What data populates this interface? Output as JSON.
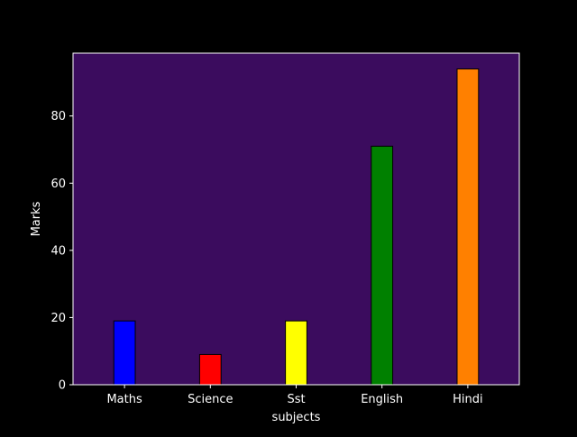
{
  "chart_data": {
    "type": "bar",
    "categories": [
      "Maths",
      "Science",
      "Sst",
      "English",
      "Hindi"
    ],
    "values": [
      19,
      9,
      19,
      71,
      94
    ],
    "bar_colors": [
      "#0000ff",
      "#ff0000",
      "#ffff00",
      "#008000",
      "#ff8000"
    ],
    "title": "",
    "xlabel": "subjects",
    "ylabel": "Marks",
    "ylim": [
      0,
      98.7
    ],
    "yticks": [
      0,
      20,
      40,
      60,
      80
    ],
    "grid": false,
    "plot_background": "#3b0c5e",
    "figure_background": "#000000",
    "bar_edge_color": "#000000",
    "axis_color": "#ffffff"
  }
}
